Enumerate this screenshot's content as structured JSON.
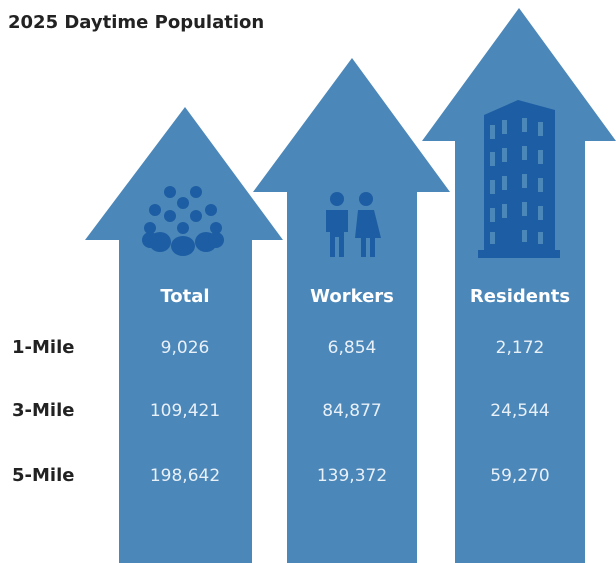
{
  "title": "2025 Daytime Population",
  "rows": [
    "1-Mile",
    "3-Mile",
    "5-Mile"
  ],
  "columns": [
    {
      "label": "Total",
      "values": [
        "9,026",
        "109,421",
        "198,642"
      ]
    },
    {
      "label": "Workers",
      "values": [
        "6,854",
        "84,877",
        "139,372"
      ]
    },
    {
      "label": "Residents",
      "values": [
        "2,172",
        "24,544",
        "59,270"
      ]
    }
  ]
}
